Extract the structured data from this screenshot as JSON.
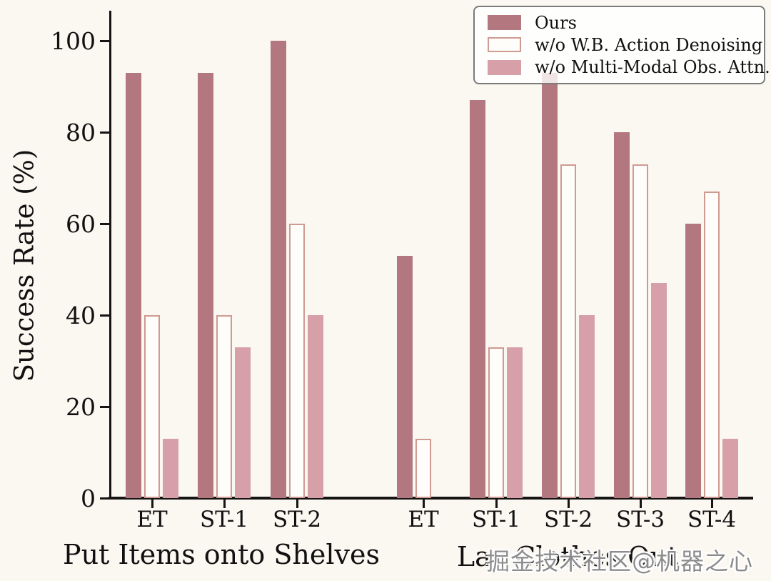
{
  "figure": {
    "ylabel": "Success Rate (%)",
    "watermark": "掘金技术社区@机器之心"
  },
  "legend": {
    "position": "upper right",
    "entries": [
      {
        "label": "Ours",
        "style": "filled",
        "color": "#b3787f",
        "border": "#b3787f"
      },
      {
        "label": "w/o W.B. Action Denoising",
        "style": "outlined",
        "color": "#fffdfa",
        "border": "#cf9a92"
      },
      {
        "label": "w/o Multi-Modal Obs. Attn.",
        "style": "filled",
        "color": "#d7a0a8",
        "border": "#d7a0a8"
      }
    ]
  },
  "chart_data": {
    "type": "bar",
    "title": "",
    "xlabel": "",
    "ylabel": "Success Rate (%)",
    "ylim": [
      0,
      100
    ],
    "yticks": [
      0,
      20,
      40,
      60,
      80,
      100
    ],
    "grid": false,
    "legend_position": "upper right",
    "groups": [
      {
        "label": "Put Items onto Shelves",
        "categories": [
          "ET",
          "ST-1",
          "ST-2"
        ],
        "series": [
          {
            "name": "Ours",
            "values": [
              93,
              93,
              100
            ]
          },
          {
            "name": "w/o W.B. Action Denoising",
            "values": [
              40,
              40,
              60
            ]
          },
          {
            "name": "w/o Multi-Modal Obs. Attn.",
            "values": [
              13,
              33,
              40
            ]
          }
        ]
      },
      {
        "label": "Lay Clothes Out",
        "categories": [
          "ET",
          "ST-1",
          "ST-2",
          "ST-3",
          "ST-4"
        ],
        "series": [
          {
            "name": "Ours",
            "values": [
              53,
              87,
              93,
              80,
              60
            ]
          },
          {
            "name": "w/o W.B. Action Denoising",
            "values": [
              13,
              33,
              73,
              73,
              67
            ]
          },
          {
            "name": "w/o Multi-Modal Obs. Attn.",
            "values": [
              0,
              33,
              40,
              47,
              13
            ]
          }
        ]
      }
    ]
  },
  "colors": {
    "ours": "#b3787f",
    "wb_fill": "#fffdfa",
    "wb_border": "#cf9a92",
    "mm": "#d7a0a8",
    "axis": "#151515",
    "background": "#fbf7f1"
  }
}
